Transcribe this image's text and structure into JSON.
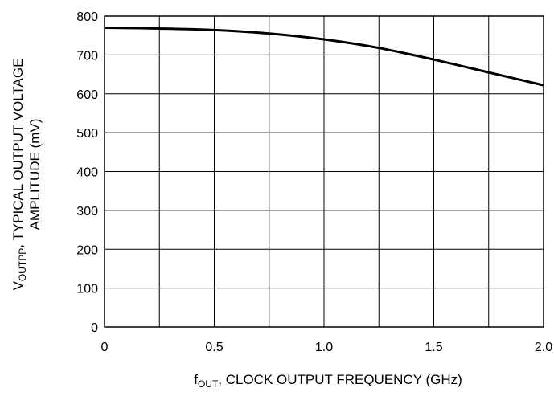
{
  "chart_data": {
    "type": "line",
    "title": "",
    "xlabel": {
      "symbol": "f",
      "subscript": "OUT",
      "text": ", CLOCK OUTPUT FREQUENCY (GHz)"
    },
    "ylabel": {
      "symbol": "V",
      "subscript": "OUTPP",
      "line1_text": ", TYPICAL OUTPUT VOLTAGE",
      "line2": "AMPLITUDE (mV)"
    },
    "xlim": [
      0,
      2.0
    ],
    "ylim": [
      0,
      800
    ],
    "x_ticks": [
      {
        "value": 0,
        "label": "0"
      },
      {
        "value": 0.5,
        "label": "0.5"
      },
      {
        "value": 1.0,
        "label": "1.0"
      },
      {
        "value": 1.5,
        "label": "1.5"
      },
      {
        "value": 2.0,
        "label": "2.0"
      }
    ],
    "x_grid": [
      0,
      0.25,
      0.5,
      0.75,
      1.0,
      1.25,
      1.5,
      1.75,
      2.0
    ],
    "y_ticks": [
      {
        "value": 0,
        "label": "0"
      },
      {
        "value": 100,
        "label": "100"
      },
      {
        "value": 200,
        "label": "200"
      },
      {
        "value": 300,
        "label": "300"
      },
      {
        "value": 400,
        "label": "400"
      },
      {
        "value": 500,
        "label": "500"
      },
      {
        "value": 600,
        "label": "600"
      },
      {
        "value": 700,
        "label": "700"
      },
      {
        "value": 800,
        "label": "800"
      }
    ],
    "grid": true,
    "series": [
      {
        "color": "#000000",
        "x": [
          0,
          0.25,
          0.5,
          0.75,
          1.0,
          1.25,
          1.5,
          1.75,
          2.0
        ],
        "values": [
          770,
          768,
          764,
          755,
          740,
          718,
          688,
          655,
          622
        ]
      }
    ]
  }
}
